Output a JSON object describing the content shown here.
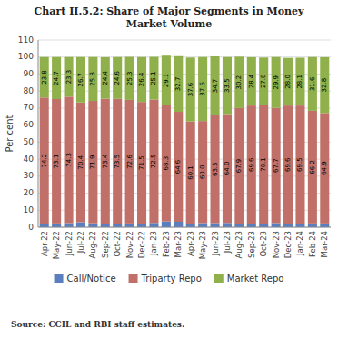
{
  "chart_data": {
    "type": "bar",
    "stacked": true,
    "title": "Chart II.5.2: Share of Major Segments in Money\nMarket Volume",
    "y_label": "Per cent",
    "annotations": [
      "Source: CCIL and RBI staff estimates."
    ],
    "categories": [
      "Apr-22",
      "May-22",
      "Jun-22",
      "Jul-22",
      "Aug-22",
      "Sep-22",
      "Oct-22",
      "Nov-22",
      "Dec-22",
      "Jan-23",
      "Feb-23",
      "Mar-23",
      "Apr-23",
      "May-23",
      "Jun-23",
      "Jul-23",
      "Aug-23",
      "Sep-23",
      "Oct-23",
      "Nov-23",
      "Dec-23",
      "Jan-24",
      "Feb-24",
      "Mar-24"
    ],
    "series": [
      {
        "name": "Call/Notice",
        "color": "#5b7fbe",
        "values": [
          2.0,
          2.2,
          2.4,
          2.9,
          2.3,
          2.1,
          1.9,
          2.2,
          2.1,
          2.5,
          3.4,
          3.2,
          2.0,
          2.4,
          2.4,
          2.5,
          2.1,
          1.9,
          1.8,
          2.4,
          1.9,
          2.0,
          2.2,
          2.2
        ]
      },
      {
        "name": "Triparty Repo",
        "color": "#c07068",
        "data_labels": true,
        "values": [
          74.2,
          73.1,
          74.3,
          70.4,
          71.9,
          73.4,
          73.5,
          72.6,
          71.5,
          72.5,
          68.3,
          64.6,
          60.1,
          60.0,
          63.3,
          64.0,
          67.9,
          69.6,
          70.1,
          67.7,
          69.6,
          69.5,
          66.2,
          64.9
        ],
        "value_labels": [
          "74.2",
          "73.1",
          "74.3",
          "70.4",
          "71.9",
          "73.4",
          "73.5",
          "72.6",
          "71.5",
          "72.5",
          "68.3",
          "64.6",
          "60.1",
          "60.0",
          "63.3",
          "64.0",
          "67.9",
          "69.6",
          "70.1",
          "67.7",
          "69.6",
          "69.5",
          "66.2",
          "64.9"
        ]
      },
      {
        "name": "Market Repo",
        "color": "#8fb04a",
        "data_labels": true,
        "values": [
          23.8,
          24.7,
          23.3,
          26.7,
          25.8,
          24.4,
          24.6,
          25.3,
          26.4,
          25.1,
          29.1,
          32.7,
          37.6,
          37.6,
          34.7,
          33.5,
          30.2,
          28.4,
          27.8,
          29.9,
          28.0,
          28.1,
          31.6,
          32.8
        ],
        "value_labels": [
          "23.8",
          "24.7",
          "23.3",
          "26.7",
          "25.8",
          "24.4",
          "24.6",
          "25.3",
          "26.4",
          "25.1",
          "29.1",
          "32.7",
          "37.6",
          "37.6",
          "34.7",
          "33.5",
          "30.2",
          "28.4",
          "27.8",
          "29.9",
          "28.0",
          "28.1",
          "31.6",
          "32.8"
        ]
      }
    ],
    "ylim": [
      0,
      110
    ],
    "yticks": [
      0,
      10,
      20,
      30,
      40,
      50,
      60,
      70,
      80,
      90,
      100,
      110
    ],
    "grid": true,
    "legend": "bottom"
  }
}
